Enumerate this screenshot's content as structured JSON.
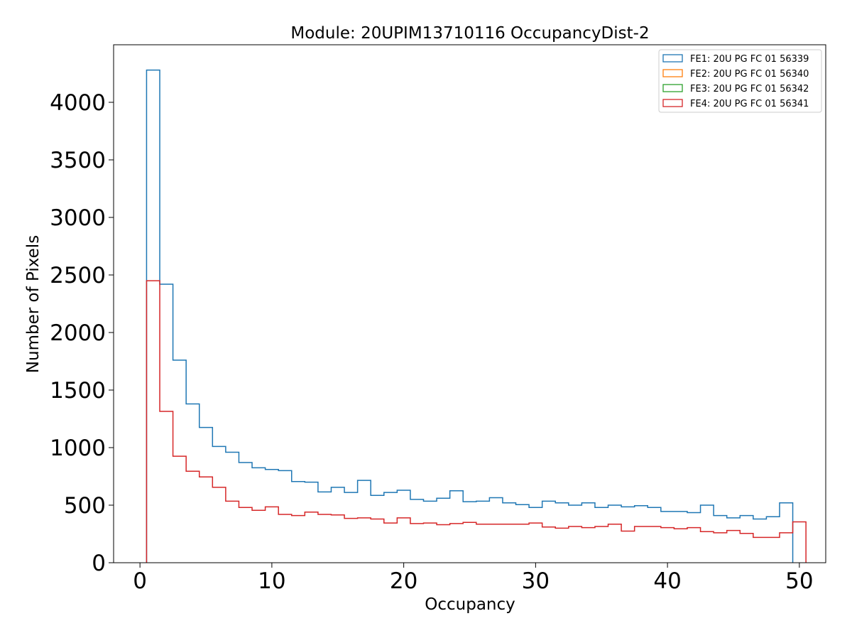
{
  "chart_data": {
    "type": "histogram-step",
    "title": "Module: 20UPIM13710116 OccupancyDist-2",
    "xlabel": "Occupancy",
    "ylabel": "Number of Pixels",
    "xlim": [
      -2,
      52
    ],
    "ylim": [
      0,
      4500
    ],
    "xticks": [
      0,
      10,
      20,
      30,
      40,
      50
    ],
    "xtick_labels": [
      "0",
      "10",
      "20",
      "30",
      "40",
      "50"
    ],
    "yticks": [
      0,
      500,
      1000,
      1500,
      2000,
      2500,
      3000,
      3500,
      4000
    ],
    "ytick_labels": [
      "0",
      "500",
      "1000",
      "1500",
      "2000",
      "2500",
      "3000",
      "3500",
      "4000"
    ],
    "grid": false,
    "legend_position": "top-right",
    "bin_edges_start": 0.5,
    "bin_width": 1,
    "series": [
      {
        "name": "FE1: 20U PG FC 01 56339",
        "color": "#1f77b4",
        "values": [
          4280,
          2420,
          1760,
          1380,
          1175,
          1010,
          960,
          870,
          825,
          810,
          800,
          705,
          700,
          615,
          655,
          610,
          715,
          585,
          610,
          630,
          550,
          535,
          560,
          625,
          530,
          535,
          565,
          520,
          505,
          480,
          535,
          520,
          500,
          520,
          480,
          500,
          485,
          495,
          480,
          445,
          445,
          435,
          500,
          410,
          390,
          410,
          380,
          400,
          520
        ]
      },
      {
        "name": "FE2: 20U PG FC 01 56340",
        "color": "#ff7f0e",
        "values": []
      },
      {
        "name": "FE3: 20U PG FC 01 56342",
        "color": "#2ca02c",
        "values": []
      },
      {
        "name": "FE4: 20U PG FC 01 56341",
        "color": "#d62728",
        "values": [
          2450,
          1315,
          925,
          795,
          745,
          655,
          535,
          480,
          455,
          485,
          420,
          410,
          440,
          420,
          415,
          385,
          390,
          380,
          345,
          390,
          340,
          345,
          330,
          340,
          350,
          335,
          335,
          335,
          335,
          345,
          310,
          300,
          315,
          305,
          315,
          335,
          275,
          315,
          315,
          305,
          295,
          305,
          270,
          260,
          280,
          255,
          220,
          220,
          260,
          355
        ]
      }
    ]
  }
}
